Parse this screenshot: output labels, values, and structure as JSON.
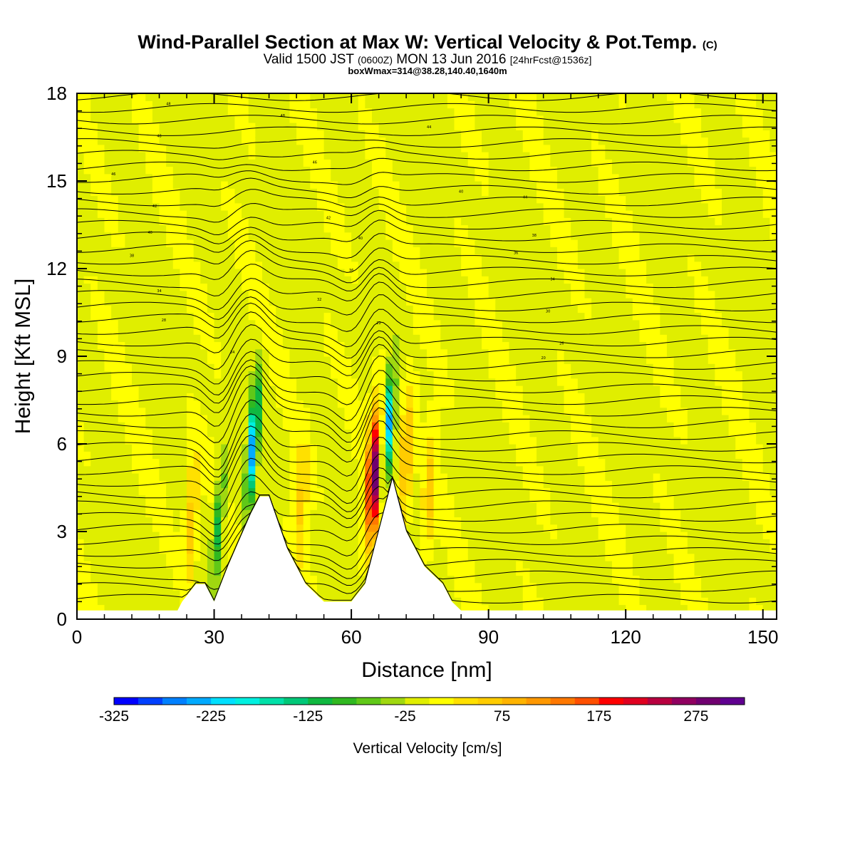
{
  "header": {
    "title_main": "Wind-Parallel Section at Max W: Vertical Velocity & Pot.Temp.",
    "title_c": "(C)",
    "valid_a": "Valid 1500 JST",
    "valid_b": "(0600Z)",
    "valid_c": "MON 13 Jun 2016",
    "valid_d": "[24hrFcst@1536z]",
    "box_info": "boxWmax=314@38.28,140.40,1640m"
  },
  "chart_data": {
    "type": "heatmap",
    "xlabel": "Distance [nm]",
    "ylabel": "Height [Kft MSL]",
    "xlim": [
      0,
      153
    ],
    "ylim": [
      0,
      18
    ],
    "x_ticks": [
      "0",
      "30",
      "60",
      "90",
      "120",
      "150"
    ],
    "y_ticks": [
      "0",
      "3",
      "6",
      "9",
      "12",
      "15",
      "18"
    ],
    "colorbar": {
      "label": "Vertical Velocity [cm/s]",
      "range": [
        -325,
        325
      ],
      "step": 25,
      "tick_labels": [
        "-325",
        "-225",
        "-125",
        "-25",
        "75",
        "175",
        "275"
      ],
      "colors": [
        "#0000ff",
        "#0040ff",
        "#0080ff",
        "#00aaff",
        "#00e0ff",
        "#00f0e0",
        "#00e0a8",
        "#00c878",
        "#10b840",
        "#30b820",
        "#60c818",
        "#a0d810",
        "#e0ee00",
        "#ffff00",
        "#ffe000",
        "#ffcc00",
        "#ffb400",
        "#ff9800",
        "#ff7800",
        "#ff5000",
        "#ff0000",
        "#e00020",
        "#b80040",
        "#900060",
        "#700070",
        "#600090"
      ]
    },
    "background_w": -5,
    "updrafts": [
      {
        "x": 25,
        "w": 80
      },
      {
        "x": 49,
        "w": 60
      },
      {
        "x": 65,
        "w": 300
      },
      {
        "x": 72,
        "w": 100
      },
      {
        "x": 77,
        "w": 70
      }
    ],
    "downdrafts": [
      {
        "x": 31,
        "w": -120
      },
      {
        "x": 38.5,
        "w": -250
      },
      {
        "x": 68,
        "w": -230
      }
    ],
    "terrain_nm_kft": [
      [
        0,
        0.3
      ],
      [
        22,
        0.3
      ],
      [
        23,
        0.6
      ],
      [
        26,
        1.2
      ],
      [
        28,
        1.2
      ],
      [
        30,
        0.6
      ],
      [
        33,
        1.8
      ],
      [
        38,
        3.6
      ],
      [
        40,
        4.2
      ],
      [
        42,
        4.2
      ],
      [
        46,
        2.4
      ],
      [
        50,
        1.2
      ],
      [
        54,
        0.6
      ],
      [
        60,
        0.6
      ],
      [
        63,
        1.2
      ],
      [
        66,
        3.0
      ],
      [
        69,
        4.8
      ],
      [
        72,
        3.0
      ],
      [
        76,
        1.8
      ],
      [
        80,
        1.2
      ],
      [
        82,
        0.6
      ],
      [
        84,
        0.3
      ],
      [
        153,
        0.3
      ]
    ],
    "theta_contour_labels": [
      "48",
      "48",
      "48",
      "46",
      "46",
      "44",
      "44",
      "42",
      "42",
      "40",
      "40",
      "40",
      "38",
      "38",
      "36",
      "36",
      "34",
      "34",
      "32",
      "30",
      "28",
      "26",
      "24",
      "22",
      "20"
    ]
  }
}
